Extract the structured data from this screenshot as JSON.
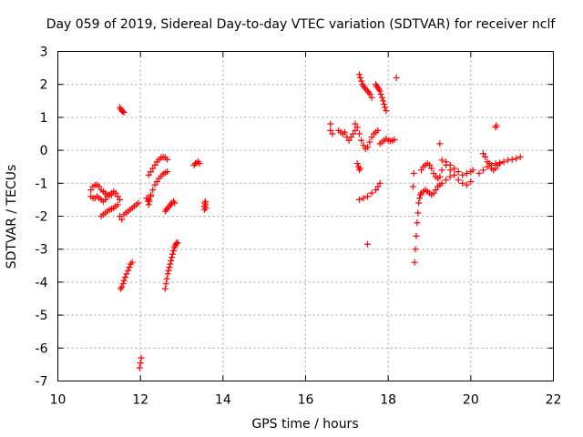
{
  "chart_data": {
    "type": "scatter",
    "title": "Day 059 of 2019, Sidereal Day-to-day VTEC variation (SDTVAR) for receiver nclf",
    "xlabel": "GPS time / hours",
    "ylabel": "SDTVAR / TECUs",
    "xlim": [
      10,
      22
    ],
    "ylim": [
      -7,
      3
    ],
    "xticks": [
      "10",
      "12",
      "14",
      "16",
      "18",
      "20",
      "22"
    ],
    "yticks": [
      "3",
      "2",
      "1",
      "0",
      "-1",
      "-2",
      "-3",
      "-4",
      "-5",
      "-6",
      "-7"
    ],
    "grid": true,
    "marker": "+",
    "color": "#ff0000",
    "series": [
      {
        "name": "arc01",
        "x": [
          10.8,
          10.85,
          10.9,
          10.95,
          11.0,
          11.05,
          11.1,
          11.15,
          11.2,
          11.25,
          11.3,
          11.35,
          11.4,
          11.45,
          11.5
        ],
        "y": [
          -1.2,
          -1.1,
          -1.05,
          -1.05,
          -1.1,
          -1.2,
          -1.25,
          -1.3,
          -1.35,
          -1.35,
          -1.3,
          -1.25,
          -1.3,
          -1.4,
          -1.5
        ]
      },
      {
        "name": "arc02",
        "x": [
          10.8,
          10.85,
          10.9,
          10.95,
          11.0,
          11.05,
          11.1,
          11.15,
          11.2,
          11.25,
          11.3
        ],
        "y": [
          -1.4,
          -1.45,
          -1.45,
          -1.4,
          -1.45,
          -1.5,
          -1.55,
          -1.5,
          -1.4,
          -1.35,
          -1.35
        ]
      },
      {
        "name": "arc03",
        "x": [
          11.05,
          11.1,
          11.15,
          11.2,
          11.25,
          11.3,
          11.35,
          11.4,
          11.45
        ],
        "y": [
          -2.0,
          -1.95,
          -1.9,
          -1.85,
          -1.8,
          -1.78,
          -1.75,
          -1.7,
          -1.65
        ]
      },
      {
        "name": "arc04",
        "x": [
          11.5,
          11.52,
          11.55,
          11.57,
          11.6
        ],
        "y": [
          1.3,
          1.25,
          1.2,
          1.18,
          1.15
        ]
      },
      {
        "name": "arc05",
        "x": [
          11.5,
          11.55,
          11.6,
          11.65,
          11.7,
          11.75,
          11.8,
          11.85,
          11.9,
          11.95
        ],
        "y": [
          -2.0,
          -2.1,
          -1.95,
          -1.9,
          -1.85,
          -1.8,
          -1.75,
          -1.7,
          -1.65,
          -1.6
        ]
      },
      {
        "name": "arc06",
        "x": [
          11.52,
          11.55,
          11.58,
          11.6,
          11.63,
          11.66,
          11.7,
          11.73,
          11.76,
          11.8
        ],
        "y": [
          -4.2,
          -4.15,
          -4.05,
          -3.95,
          -3.85,
          -3.75,
          -3.65,
          -3.55,
          -3.45,
          -3.4
        ]
      },
      {
        "name": "arc07",
        "x": [
          11.98,
          12.0,
          12.02
        ],
        "y": [
          -6.6,
          -6.45,
          -6.3
        ]
      },
      {
        "name": "arc08",
        "x": [
          12.2,
          12.25,
          12.3,
          12.35,
          12.4,
          12.45,
          12.5,
          12.55,
          12.6,
          12.65
        ],
        "y": [
          -0.75,
          -0.65,
          -0.55,
          -0.45,
          -0.35,
          -0.28,
          -0.22,
          -0.2,
          -0.22,
          -0.28
        ]
      },
      {
        "name": "arc09",
        "x": [
          12.2,
          12.25,
          12.3,
          12.35,
          12.4,
          12.45,
          12.5,
          12.55,
          12.6,
          12.65
        ],
        "y": [
          -1.5,
          -1.35,
          -1.2,
          -1.05,
          -0.95,
          -0.85,
          -0.78,
          -0.72,
          -0.68,
          -0.65
        ]
      },
      {
        "name": "arc10",
        "x": [
          12.15,
          12.18,
          12.2,
          12.22,
          12.25
        ],
        "y": [
          -1.45,
          -1.55,
          -1.65,
          -1.55,
          -1.4
        ]
      },
      {
        "name": "arc11",
        "x": [
          12.6,
          12.62,
          12.64,
          12.66,
          12.68,
          12.7,
          12.72,
          12.74,
          12.76,
          12.78,
          12.8,
          12.82,
          12.84,
          12.86,
          12.88,
          12.9
        ],
        "y": [
          -4.2,
          -4.05,
          -3.9,
          -3.75,
          -3.65,
          -3.55,
          -3.45,
          -3.35,
          -3.25,
          -3.15,
          -3.05,
          -2.95,
          -2.9,
          -2.85,
          -2.82,
          -2.8
        ]
      },
      {
        "name": "arc12",
        "x": [
          12.6,
          12.63,
          12.66,
          12.7,
          12.73,
          12.76,
          12.8,
          12.83
        ],
        "y": [
          -1.85,
          -1.8,
          -1.75,
          -1.7,
          -1.65,
          -1.6,
          -1.55,
          -1.6
        ]
      },
      {
        "name": "arc13",
        "x": [
          13.3,
          13.33,
          13.36,
          13.4,
          13.43
        ],
        "y": [
          -0.45,
          -0.4,
          -0.38,
          -0.35,
          -0.4
        ]
      },
      {
        "name": "arc14",
        "x": [
          13.55,
          13.55,
          13.56,
          13.57,
          13.58,
          13.58
        ],
        "y": [
          -1.8,
          -1.7,
          -1.6,
          -1.55,
          -1.65,
          -1.75
        ]
      },
      {
        "name": "arc15",
        "x": [
          16.6,
          16.6,
          16.65,
          16.8,
          16.85,
          16.9,
          16.95,
          17.0,
          17.05,
          17.1,
          17.15,
          17.2
        ],
        "y": [
          0.8,
          0.6,
          0.5,
          0.6,
          0.55,
          0.5,
          0.55,
          0.4,
          0.3,
          0.4,
          0.5,
          0.6
        ]
      },
      {
        "name": "arc16",
        "x": [
          17.2,
          17.25,
          17.3,
          17.35,
          17.4,
          17.45,
          17.5,
          17.55,
          17.6,
          17.65,
          17.7,
          17.75
        ],
        "y": [
          0.8,
          0.7,
          0.5,
          0.3,
          0.15,
          0.05,
          0.1,
          0.25,
          0.4,
          0.5,
          0.55,
          0.6
        ]
      },
      {
        "name": "arc17",
        "x": [
          17.3,
          17.32,
          17.35,
          17.38,
          17.4,
          17.43,
          17.46,
          17.5,
          17.53,
          17.56,
          17.6
        ],
        "y": [
          2.3,
          2.2,
          2.1,
          2.0,
          1.95,
          1.9,
          1.85,
          1.8,
          1.75,
          1.7,
          1.6
        ]
      },
      {
        "name": "arc18",
        "x": [
          17.7,
          17.72,
          17.75,
          17.78,
          17.8,
          17.82,
          17.85,
          17.88,
          17.9,
          17.92,
          17.95
        ],
        "y": [
          2.0,
          1.95,
          1.9,
          1.85,
          1.8,
          1.7,
          1.6,
          1.5,
          1.4,
          1.3,
          1.2
        ]
      },
      {
        "name": "arc19",
        "x": [
          17.8,
          17.85,
          17.9,
          17.95,
          18.0,
          18.05,
          18.1,
          18.15
        ],
        "y": [
          0.2,
          0.25,
          0.3,
          0.35,
          0.3,
          0.28,
          0.3,
          0.32
        ]
      },
      {
        "name": "arc20",
        "x": [
          17.25,
          17.28,
          17.3,
          17.32
        ],
        "y": [
          -0.4,
          -0.5,
          -0.6,
          -0.55
        ]
      },
      {
        "name": "arc21",
        "x": [
          17.3,
          17.4,
          17.5,
          17.6,
          17.7,
          17.75,
          17.8
        ],
        "y": [
          -1.5,
          -1.45,
          -1.4,
          -1.3,
          -1.2,
          -1.1,
          -1.0
        ]
      },
      {
        "name": "arc22",
        "x": [
          17.5,
          18.2,
          19.25
        ],
        "y": [
          -2.85,
          2.2,
          0.2
        ]
      },
      {
        "name": "arc23",
        "x": [
          18.6,
          18.62,
          18.64,
          18.66,
          18.68,
          18.7,
          18.72,
          18.74,
          18.76,
          18.78,
          18.8,
          18.85,
          18.9,
          18.95,
          19.0,
          19.05,
          19.1,
          19.15,
          19.2,
          19.25,
          19.3,
          19.4,
          19.5
        ],
        "y": [
          -1.1,
          -0.7,
          -3.4,
          -3.0,
          -2.6,
          -2.2,
          -1.9,
          -1.6,
          -1.45,
          -1.35,
          -1.3,
          -1.25,
          -1.2,
          -1.25,
          -1.3,
          -1.35,
          -1.3,
          -1.2,
          -1.1,
          -1.05,
          -1.0,
          -0.9,
          -0.8
        ]
      },
      {
        "name": "arc24",
        "x": [
          18.8,
          18.85,
          18.9,
          18.95,
          19.0,
          19.05,
          19.1,
          19.15,
          19.2,
          19.25,
          19.3,
          19.4,
          19.5,
          19.6,
          19.7,
          19.8,
          19.9,
          20.0,
          20.05
        ],
        "y": [
          -0.6,
          -0.5,
          -0.45,
          -0.4,
          -0.45,
          -0.55,
          -0.7,
          -0.8,
          -0.85,
          -0.8,
          -0.6,
          -0.35,
          -0.45,
          -0.55,
          -0.65,
          -0.75,
          -0.7,
          -0.65,
          -0.6
        ]
      },
      {
        "name": "arc25",
        "x": [
          19.3,
          19.4,
          19.5,
          19.6,
          19.7,
          19.8,
          19.9,
          20.0
        ],
        "y": [
          -0.3,
          -0.45,
          -0.6,
          -0.75,
          -0.9,
          -1.0,
          -1.05,
          -0.95
        ]
      },
      {
        "name": "arc26",
        "x": [
          20.2,
          20.3,
          20.4,
          20.5,
          20.6,
          20.7,
          20.8,
          20.9,
          21.0,
          21.1,
          21.2
        ],
        "y": [
          -0.7,
          -0.6,
          -0.5,
          -0.45,
          -0.4,
          -0.38,
          -0.35,
          -0.3,
          -0.28,
          -0.25,
          -0.2
        ]
      },
      {
        "name": "arc27",
        "x": [
          20.3,
          20.35,
          20.4,
          20.45,
          20.5,
          20.55,
          20.6,
          20.65,
          20.7
        ],
        "y": [
          -0.1,
          -0.2,
          -0.35,
          -0.4,
          -0.55,
          -0.6,
          -0.55,
          -0.45,
          -0.4
        ]
      },
      {
        "name": "arc28",
        "x": [
          20.6,
          20.62
        ],
        "y": [
          0.7,
          0.75
        ]
      }
    ]
  }
}
